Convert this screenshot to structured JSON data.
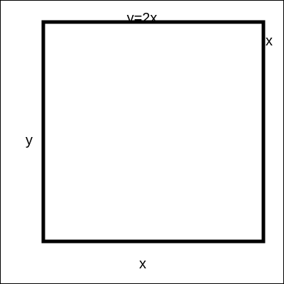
{
  "diagram": {
    "labels": {
      "top_partial": "y=2x",
      "right": "x",
      "left": "y",
      "bottom": "x"
    },
    "colors": {
      "background": "#ffffff",
      "stroke": "#000000"
    }
  }
}
